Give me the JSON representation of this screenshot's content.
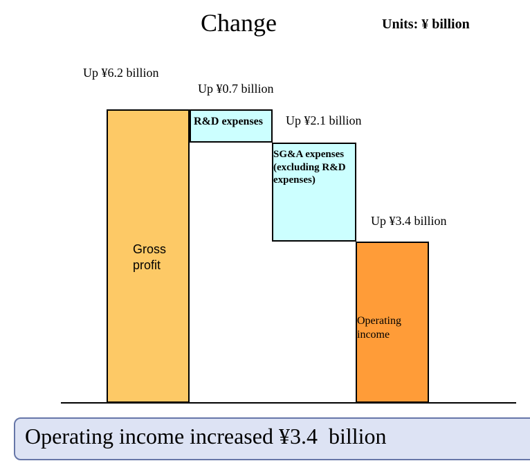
{
  "chart_data": {
    "type": "waterfall",
    "title": "Change",
    "units": "Units: ¥ billion",
    "categories": [
      "Gross profit",
      "R&D expenses",
      "SG&A expenses (excluding R&D expenses)",
      "Operating income"
    ],
    "values": [
      6.2,
      -0.7,
      -2.1,
      3.4
    ],
    "value_labels": [
      "Up ¥6.2 billion",
      "Up ¥0.7 billion",
      "Up ¥2.1 billion",
      "Up ¥3.4 billion"
    ],
    "total": [
      true,
      false,
      false,
      true
    ],
    "colors": [
      "#fdc966",
      "#ccffff",
      "#ccffff",
      "#ff9c38"
    ],
    "annotation": "Operating income increased ¥3.4  billion"
  }
}
